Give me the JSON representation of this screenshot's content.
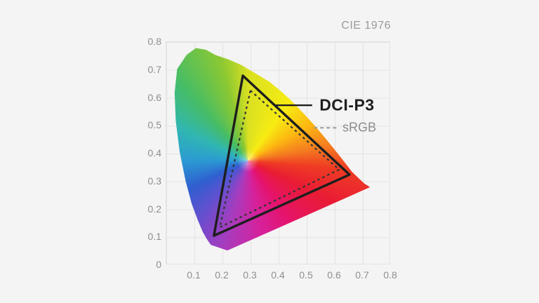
{
  "page": {
    "background_color": "#f4f4f4"
  },
  "axes": {
    "x_tick_labels": [
      "0.1",
      "0.2",
      "0.3",
      "0.4",
      "0.5",
      "0.6",
      "0.7",
      "0.8"
    ],
    "y_tick_labels": [
      "0",
      "0.1",
      "0.2",
      "0.3",
      "0.4",
      "0.5",
      "0.6",
      "0.7",
      "0.8"
    ],
    "tick_color": "#8e8e8e",
    "grid_color": "#e3e3e3"
  },
  "chart_data": {
    "type": "area",
    "title": "CIE 1976",
    "subtitle": "",
    "xlabel": "",
    "ylabel": "",
    "xlim": [
      0,
      0.8
    ],
    "ylim": [
      0,
      0.8
    ],
    "grid": true,
    "legend_position": "inline-annotations",
    "series": [
      {
        "name": "DCI-P3",
        "role": "color-gamut-triangle",
        "line_style": "solid",
        "color": "#1e1e1e",
        "stroke_width": 3.4,
        "vertices": {
          "green": [
            0.275,
            0.677
          ],
          "red": [
            0.655,
            0.322
          ],
          "blue": [
            0.172,
            0.103
          ]
        }
      },
      {
        "name": "sRGB",
        "role": "color-gamut-triangle",
        "line_style": "dashed",
        "color": "#333333",
        "stroke_width": 2.2,
        "vertices": {
          "green": [
            0.302,
            0.624
          ],
          "red": [
            0.618,
            0.34
          ],
          "blue": [
            0.193,
            0.133
          ]
        }
      }
    ],
    "annotations": [
      {
        "label": "DCI-P3",
        "leader": {
          "x1": 0.388,
          "x2": 0.522,
          "y": 0.571,
          "style": "solid",
          "color": "#1e1e1e"
        },
        "label_pos": [
          0.548,
          0.571
        ]
      },
      {
        "label": "sRGB",
        "leader": {
          "x1": 0.528,
          "x2": 0.61,
          "y": 0.49,
          "style": "dashed",
          "color": "#999999"
        },
        "label_pos": [
          0.63,
          0.49
        ]
      }
    ],
    "spectral_locus": {
      "white_point": [
        0.293,
        0.372
      ],
      "outline": [
        [
          0.22,
          0.05
        ],
        [
          0.161,
          0.07
        ],
        [
          0.146,
          0.092
        ],
        [
          0.132,
          0.117
        ],
        [
          0.115,
          0.158
        ],
        [
          0.093,
          0.217
        ],
        [
          0.071,
          0.3
        ],
        [
          0.05,
          0.404
        ],
        [
          0.036,
          0.515
        ],
        [
          0.032,
          0.617
        ],
        [
          0.041,
          0.701
        ],
        [
          0.075,
          0.752
        ],
        [
          0.108,
          0.776
        ],
        [
          0.143,
          0.77
        ],
        [
          0.178,
          0.751
        ],
        [
          0.225,
          0.735
        ],
        [
          0.27,
          0.715
        ],
        [
          0.315,
          0.688
        ],
        [
          0.37,
          0.655
        ],
        [
          0.41,
          0.622
        ],
        [
          0.445,
          0.59
        ],
        [
          0.476,
          0.558
        ],
        [
          0.505,
          0.527
        ],
        [
          0.532,
          0.497
        ],
        [
          0.557,
          0.467
        ],
        [
          0.58,
          0.439
        ],
        [
          0.601,
          0.413
        ],
        [
          0.62,
          0.389
        ],
        [
          0.637,
          0.367
        ],
        [
          0.664,
          0.332
        ],
        [
          0.688,
          0.309
        ],
        [
          0.707,
          0.291
        ],
        [
          0.728,
          0.277
        ]
      ],
      "hue_wheel": [
        {
          "angle": 0,
          "color": "#d9e021"
        },
        {
          "angle": 35,
          "color": "#f7ec13"
        },
        {
          "angle": 60,
          "color": "#fcb711"
        },
        {
          "angle": 80,
          "color": "#f47b20"
        },
        {
          "angle": 95,
          "color": "#ef3b24"
        },
        {
          "angle": 115,
          "color": "#e91c34"
        },
        {
          "angle": 145,
          "color": "#e5136b"
        },
        {
          "angle": 170,
          "color": "#d6219c"
        },
        {
          "angle": 195,
          "color": "#a93bbd"
        },
        {
          "angle": 220,
          "color": "#6450cf"
        },
        {
          "angle": 245,
          "color": "#2f5fd0"
        },
        {
          "angle": 270,
          "color": "#2b9ad2"
        },
        {
          "angle": 295,
          "color": "#30b6b3"
        },
        {
          "angle": 320,
          "color": "#47bd64"
        },
        {
          "angle": 345,
          "color": "#8cc832"
        },
        {
          "angle": 360,
          "color": "#d9e021"
        }
      ]
    }
  }
}
